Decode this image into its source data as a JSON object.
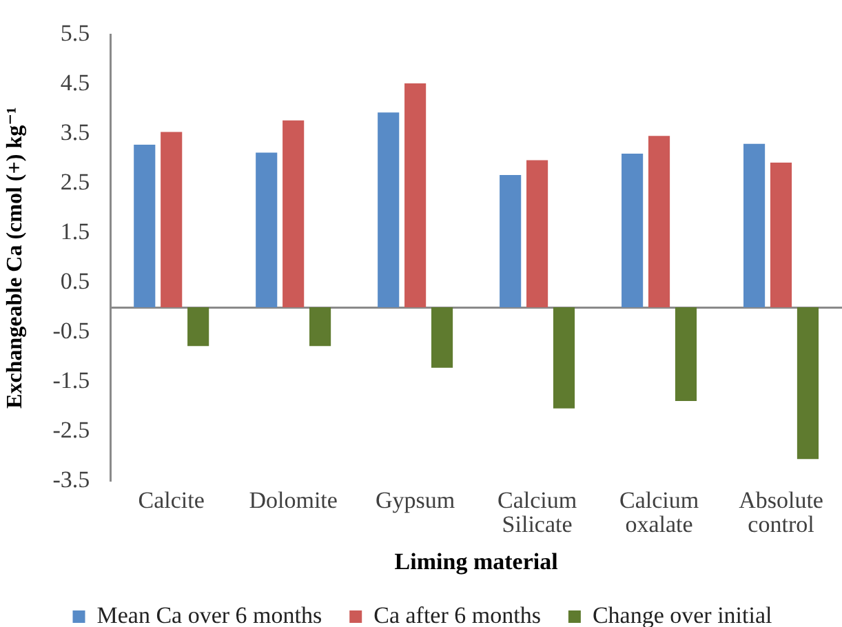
{
  "chart_data": {
    "type": "bar",
    "xlabel": "Liming material",
    "ylabel": "Exchangeable Ca (cmol (+) kg⁻¹",
    "categories": [
      "Calcite",
      "Dolomite",
      "Gypsum",
      "Calcium Silicate",
      "Calcium oxalate",
      "Absolute control"
    ],
    "series": [
      {
        "name": "Mean Ca over 6 months",
        "color": "#588bc7",
        "values": [
          3.28,
          3.12,
          3.93,
          2.67,
          3.1,
          3.3
        ]
      },
      {
        "name": "Ca after 6 months",
        "color": "#cc5a57",
        "values": [
          3.54,
          3.77,
          4.52,
          2.97,
          3.46,
          2.92
        ]
      },
      {
        "name": "Change over initial",
        "color": "#5f7b2f",
        "values": [
          -0.78,
          -0.78,
          -1.22,
          -2.04,
          -1.89,
          -3.06
        ]
      }
    ],
    "ylim": [
      -3.5,
      5.5
    ],
    "yticks": [
      5.5,
      4.5,
      3.5,
      2.5,
      1.5,
      0.5,
      -0.5,
      -1.5,
      -2.5,
      -3.5
    ],
    "grid": false,
    "legend": "bottom"
  }
}
